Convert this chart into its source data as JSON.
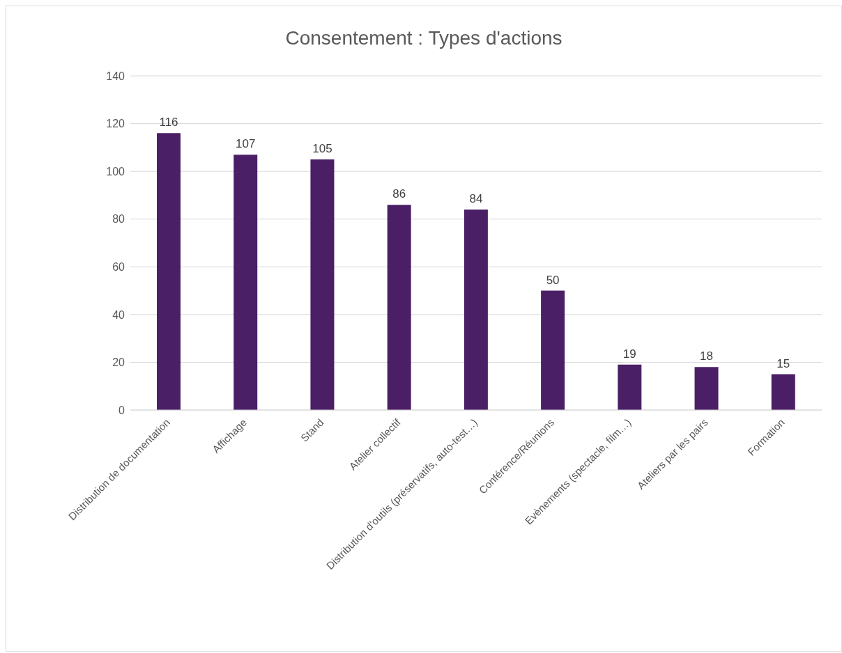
{
  "chart_data": {
    "type": "bar",
    "title": "Consentement : Types d'actions",
    "categories": [
      "Distribution de documentation",
      "Affichage",
      "Stand",
      "Atelier collectif",
      "Distribution d'outils (préservatifs, auto-test…)",
      "Conférence/Réunions",
      "Evènements (spectacle, film…)",
      "Ateliers par les pairs",
      "Formation"
    ],
    "values": [
      116,
      107,
      105,
      86,
      84,
      50,
      19,
      18,
      15
    ],
    "color": "#4a1f66",
    "ylim": [
      0,
      140
    ],
    "yticks": [
      0,
      20,
      40,
      60,
      80,
      100,
      120,
      140
    ],
    "grid": "y",
    "data_labels": true
  }
}
